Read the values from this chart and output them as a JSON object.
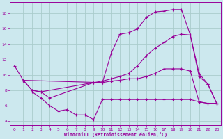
{
  "xlabel": "Windchill (Refroidissement éolien,°C)",
  "xlim": [
    -0.5,
    23.5
  ],
  "ylim": [
    3.5,
    19.5
  ],
  "xticks": [
    0,
    1,
    2,
    3,
    4,
    5,
    6,
    7,
    8,
    9,
    10,
    11,
    12,
    13,
    14,
    15,
    16,
    17,
    18,
    19,
    20,
    21,
    22,
    23
  ],
  "yticks": [
    4,
    6,
    8,
    10,
    12,
    14,
    16,
    18
  ],
  "bg_color": "#cce8ee",
  "line_color": "#990099",
  "grid_color": "#aacccc",
  "lines": [
    {
      "x": [
        0,
        1,
        10,
        11,
        12,
        13,
        14,
        15,
        16,
        17,
        18,
        19,
        20,
        21,
        22,
        23
      ],
      "y": [
        11.2,
        9.3,
        9.0,
        12.8,
        15.3,
        15.5,
        16.0,
        17.5,
        18.2,
        18.3,
        18.5,
        18.5,
        15.2,
        9.8,
        8.8,
        6.3
      ]
    },
    {
      "x": [
        1,
        2,
        3,
        9,
        10,
        11,
        12,
        13,
        14,
        15,
        16,
        17,
        18,
        19,
        20,
        21,
        22,
        23
      ],
      "y": [
        9.3,
        8.0,
        7.8,
        9.0,
        9.2,
        9.5,
        9.8,
        10.2,
        11.2,
        12.5,
        13.5,
        14.2,
        15.0,
        15.3,
        15.2,
        10.2,
        8.8,
        6.3
      ]
    },
    {
      "x": [
        1,
        2,
        3,
        4,
        9,
        10,
        11,
        12,
        13,
        14,
        15,
        16,
        17,
        18,
        19,
        20,
        21,
        22,
        23
      ],
      "y": [
        9.3,
        8.0,
        7.8,
        7.0,
        9.0,
        9.0,
        9.2,
        9.3,
        9.5,
        9.5,
        9.8,
        10.2,
        10.8,
        10.8,
        10.8,
        10.5,
        6.5,
        6.3,
        6.3
      ]
    },
    {
      "x": [
        2,
        3,
        4,
        5,
        6,
        7,
        8,
        9,
        10,
        11,
        12,
        13,
        14,
        15,
        16,
        17,
        18,
        19,
        20,
        21,
        22,
        23
      ],
      "y": [
        7.8,
        7.0,
        6.0,
        5.3,
        5.5,
        4.8,
        4.8,
        4.2,
        6.8,
        6.8,
        6.8,
        6.8,
        6.8,
        6.8,
        6.8,
        6.8,
        6.8,
        6.8,
        6.8,
        6.5,
        6.3,
        6.3
      ]
    }
  ]
}
